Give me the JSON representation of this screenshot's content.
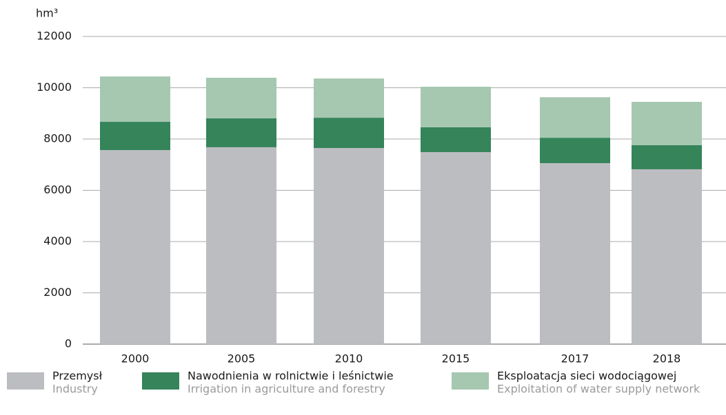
{
  "chart_data": {
    "type": "stacked-bar",
    "y_label": "hm³",
    "categories": [
      "2000",
      "2005",
      "2010",
      "2015",
      "2017",
      "2018"
    ],
    "series": [
      {
        "name": "Przemysł",
        "name_en": "Industry",
        "color": "#bcbdc1",
        "values": [
          7570,
          7680,
          7650,
          7490,
          7060,
          6820
        ]
      },
      {
        "name": "Nawodnienia w rolnictwie i leśnictwie",
        "name_en": "Irrigation in agriculture and forestry",
        "color": "#35845a",
        "values": [
          1100,
          1130,
          1180,
          970,
          990,
          940
        ]
      },
      {
        "name": "Eksploatacja sieci wodociągowej",
        "name_en": "Exploitation of water supply network",
        "color": "#a6c7b0",
        "values": [
          1770,
          1580,
          1530,
          1580,
          1580,
          1690
        ]
      }
    ],
    "ylim": [
      0,
      12000
    ],
    "yticks": [
      0,
      2000,
      4000,
      6000,
      8000,
      10000,
      12000
    ],
    "grid": true
  }
}
